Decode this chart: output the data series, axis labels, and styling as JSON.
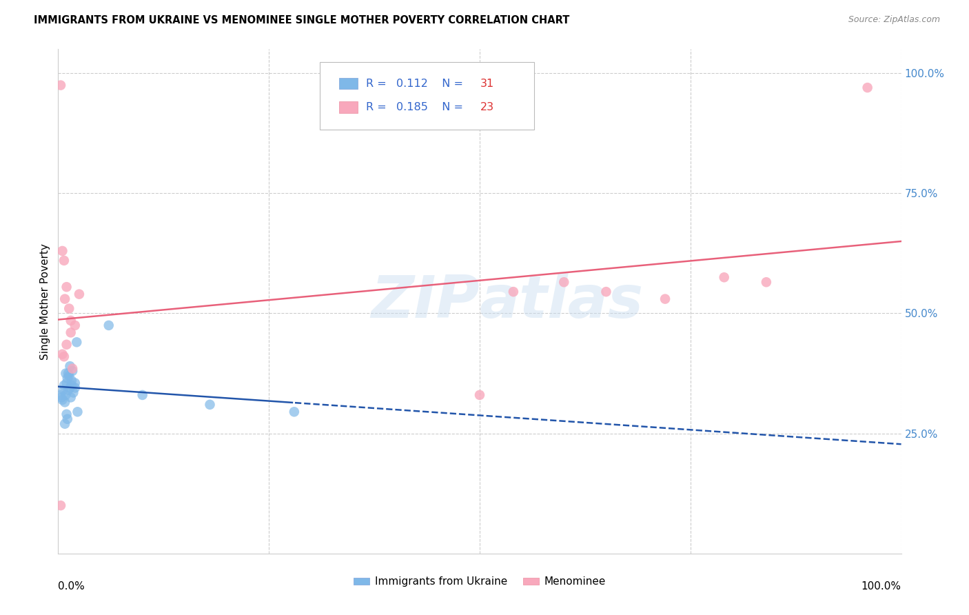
{
  "title": "IMMIGRANTS FROM UKRAINE VS MENOMINEE SINGLE MOTHER POVERTY CORRELATION CHART",
  "source": "Source: ZipAtlas.com",
  "ylabel": "Single Mother Poverty",
  "ylabel_right_ticks": [
    "100.0%",
    "75.0%",
    "50.0%",
    "25.0%"
  ],
  "ylabel_right_vals": [
    1.0,
    0.75,
    0.5,
    0.25
  ],
  "xlim": [
    0.0,
    1.0
  ],
  "ylim": [
    0.0,
    1.05
  ],
  "watermark": "ZIPatlas",
  "legend_ukraine_R": "0.112",
  "legend_ukraine_N": "31",
  "legend_menominee_R": "0.185",
  "legend_menominee_N": "23",
  "ukraine_color": "#7fb8e8",
  "menominee_color": "#f8a8bc",
  "ukraine_line_color": "#2255aa",
  "menominee_line_color": "#e8607a",
  "ukraine_x": [
    0.003,
    0.004,
    0.005,
    0.006,
    0.007,
    0.008,
    0.009,
    0.01,
    0.011,
    0.012,
    0.013,
    0.014,
    0.015,
    0.016,
    0.017,
    0.018,
    0.02,
    0.022,
    0.01,
    0.011,
    0.008,
    0.009,
    0.012,
    0.014,
    0.016,
    0.02,
    0.023,
    0.06,
    0.1,
    0.18,
    0.28
  ],
  "ukraine_y": [
    0.33,
    0.325,
    0.32,
    0.34,
    0.35,
    0.315,
    0.33,
    0.355,
    0.365,
    0.34,
    0.37,
    0.345,
    0.325,
    0.35,
    0.38,
    0.335,
    0.355,
    0.44,
    0.29,
    0.28,
    0.27,
    0.375,
    0.375,
    0.39,
    0.36,
    0.345,
    0.295,
    0.475,
    0.33,
    0.31,
    0.295
  ],
  "menominee_x": [
    0.003,
    0.005,
    0.007,
    0.008,
    0.01,
    0.013,
    0.015,
    0.017,
    0.02,
    0.025,
    0.54,
    0.6,
    0.65,
    0.72,
    0.79,
    0.84,
    0.005,
    0.007,
    0.01,
    0.015,
    0.5,
    0.96,
    0.003
  ],
  "menominee_y": [
    0.975,
    0.63,
    0.61,
    0.53,
    0.555,
    0.51,
    0.46,
    0.385,
    0.475,
    0.54,
    0.545,
    0.565,
    0.545,
    0.53,
    0.575,
    0.565,
    0.415,
    0.41,
    0.435,
    0.485,
    0.33,
    0.97,
    0.1
  ]
}
